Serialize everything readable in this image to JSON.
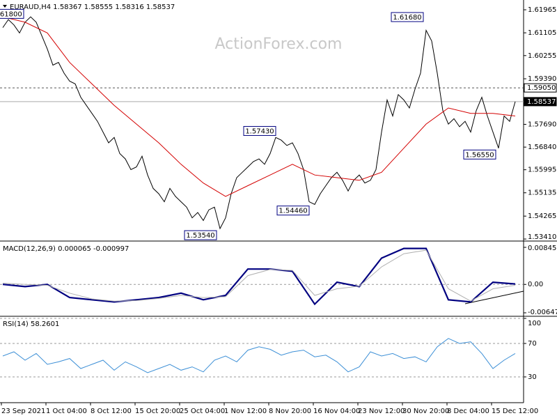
{
  "header": "EURAUD,H4 1.58367 1.58555 1.58316 1.58537",
  "watermark": "ActionForex.com",
  "x_labels": [
    "23 Sep 2021",
    "1 Oct 04:00",
    "8 Oct 12:00",
    "15 Oct 20:00",
    "25 Oct 04:00",
    "1 Nov 12:00",
    "8 Nov 20:00",
    "16 Nov 04:00",
    "23 Nov 12:00",
    "30 Nov 20:00",
    "8 Dec 04:00",
    "15 Dec 12:00"
  ],
  "chart_data": [
    {
      "type": "line",
      "series": [
        {
          "color": "#000000",
          "values": [
            1.613,
            1.616,
            1.614,
            1.611,
            1.615,
            1.617,
            1.615,
            1.61,
            1.605,
            1.599,
            1.6,
            1.596,
            1.593,
            1.592,
            1.587,
            1.584,
            1.581,
            1.578,
            1.574,
            1.57,
            1.572,
            1.566,
            1.564,
            1.56,
            1.561,
            1.565,
            1.558,
            1.553,
            1.551,
            1.548,
            1.553,
            1.55,
            1.548,
            1.546,
            1.542,
            1.544,
            1.541,
            1.545,
            1.546,
            1.538,
            1.542,
            1.551,
            1.557,
            1.559,
            1.561,
            1.563,
            1.564,
            1.562,
            1.566,
            1.572,
            1.571,
            1.569,
            1.57,
            1.566,
            1.56,
            1.548,
            1.547,
            1.551,
            1.554,
            1.557,
            1.559,
            1.556,
            1.552,
            1.556,
            1.558,
            1.555,
            1.556,
            1.56,
            1.574,
            1.586,
            1.58,
            1.588,
            1.586,
            1.583,
            1.59,
            1.596,
            1.612,
            1.608,
            1.596,
            1.582,
            1.577,
            1.579,
            1.576,
            1.578,
            1.574,
            1.582,
            1.587,
            1.58,
            1.574,
            1.568,
            1.58,
            1.578,
            1.58537
          ]
        },
        {
          "color": "#d40000",
          "values": [
            1.617,
            1.615,
            1.611,
            1.6,
            1.592,
            1.584,
            1.577,
            1.57,
            1.562,
            1.555,
            1.55,
            1.554,
            1.558,
            1.562,
            1.558,
            1.557,
            1.556,
            1.559,
            1.568,
            1.577,
            1.583,
            1.581,
            1.581,
            1.58
          ]
        }
      ],
      "ylim": [
        1.5336,
        1.6233
      ],
      "yticks": [
        {
          "value": 1.61965,
          "label": "1.61965"
        },
        {
          "value": 1.61105,
          "label": "1.61105"
        },
        {
          "value": 1.60255,
          "label": "1.60255"
        },
        {
          "value": 1.5939,
          "label": "1.59390"
        },
        {
          "value": 1.5769,
          "label": "1.57690"
        },
        {
          "value": 1.5684,
          "label": "1.56840"
        },
        {
          "value": 1.55995,
          "label": "1.55995"
        },
        {
          "value": 1.55135,
          "label": "1.55135"
        },
        {
          "value": 1.54265,
          "label": "1.54265"
        },
        {
          "value": 1.5341,
          "label": "1.53410"
        }
      ],
      "levels": [
        {
          "value": 1.5905,
          "label": "1.59050",
          "style": "dashed"
        },
        {
          "value": 1.58537,
          "label": "1.58537",
          "style": "current"
        }
      ],
      "annotations": [
        {
          "value": 1.618,
          "label": "1.61800"
        },
        {
          "value": 1.5743,
          "label": "1.57430"
        },
        {
          "value": 1.5354,
          "label": "1.53540"
        },
        {
          "value": 1.5446,
          "label": "1.54460"
        },
        {
          "value": 1.6168,
          "label": "1.61680"
        },
        {
          "value": 1.5655,
          "label": "1.56550"
        }
      ]
    },
    {
      "type": "line",
      "title": "MACD(12,26,9) 0.000065 -0.000997",
      "series": [
        {
          "color": "#000080",
          "values": [
            0.0,
            -0.0005,
            0.0,
            -0.003,
            -0.0035,
            -0.004,
            -0.0035,
            -0.003,
            -0.002,
            -0.0035,
            -0.0025,
            0.0035,
            0.0035,
            0.003,
            -0.0045,
            0.0005,
            -0.0005,
            0.006,
            0.0082,
            0.0082,
            -0.0035,
            -0.004,
            0.0005,
            0.0001
          ]
        },
        {
          "color": "#b0b0b0",
          "values": [
            0.0003,
            0.0,
            -0.0002,
            -0.002,
            -0.0033,
            -0.0038,
            -0.0037,
            -0.0032,
            -0.0025,
            -0.003,
            -0.0028,
            0.002,
            0.0034,
            0.0032,
            -0.0025,
            -0.001,
            -0.0004,
            0.004,
            0.007,
            0.0078,
            -0.001,
            -0.0038,
            -0.001,
            -0.0002
          ]
        }
      ],
      "ylim": [
        -0.00711,
        0.00941
      ],
      "yticks": [
        0.008452,
        {
          "value": 0,
          "label": "0.00"
        },
        -0.006475
      ],
      "zero_line": true
    },
    {
      "type": "line",
      "title": "RSI(14) 58.2601",
      "series": [
        {
          "color": "#3c8fd6",
          "values": [
            55,
            60,
            50,
            58,
            45,
            48,
            52,
            40,
            45,
            50,
            38,
            48,
            42,
            35,
            40,
            45,
            38,
            42,
            36,
            50,
            55,
            48,
            62,
            66,
            63,
            56,
            60,
            62,
            54,
            56,
            48,
            36,
            42,
            60,
            55,
            58,
            52,
            54,
            48,
            66,
            76,
            70,
            72,
            58,
            40,
            50,
            58
          ]
        }
      ],
      "ylim": [
        0,
        100
      ],
      "yticks": [
        100,
        70,
        30
      ],
      "grid": "dashed"
    }
  ]
}
